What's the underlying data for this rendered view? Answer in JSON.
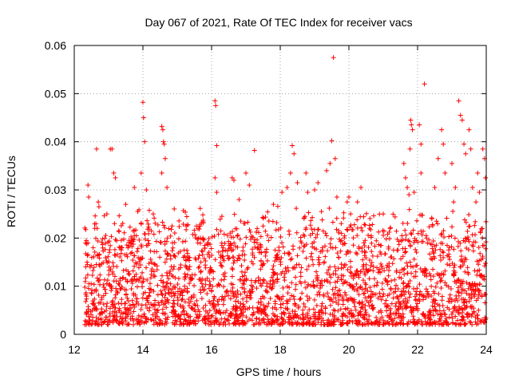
{
  "chart_data": {
    "type": "scatter",
    "title": "Day 067 of 2021, Rate Of TEC Index for receiver vacs",
    "xlabel": "GPS time / hours",
    "ylabel": "ROTI / TECUs",
    "xlim": [
      12,
      24
    ],
    "ylim": [
      0,
      0.06
    ],
    "x_ticks": [
      12,
      14,
      16,
      18,
      20,
      22,
      24
    ],
    "x_tick_labels": [
      "12",
      "14",
      "16",
      "18",
      "20",
      "22",
      "24"
    ],
    "y_ticks": [
      0,
      0.01,
      0.02,
      0.03,
      0.04,
      0.05,
      0.06
    ],
    "y_tick_labels": [
      "0",
      "0.01",
      "0.02",
      "0.03",
      "0.04",
      "0.05",
      "0.06"
    ],
    "grid": true,
    "marker": "+",
    "series_color": "#ff0000",
    "series": [
      {
        "name": "ROTI",
        "x_range": [
          12.3,
          24.0
        ],
        "typical_y_range": [
          0.002,
          0.025
        ],
        "points": [
          [
            12.35,
            0.0195
          ],
          [
            12.4,
            0.031
          ],
          [
            12.42,
            0.0285
          ],
          [
            12.55,
            0.018
          ],
          [
            12.65,
            0.0385
          ],
          [
            12.7,
            0.0275
          ],
          [
            12.72,
            0.0265
          ],
          [
            12.95,
            0.025
          ],
          [
            13.05,
            0.0385
          ],
          [
            13.1,
            0.0385
          ],
          [
            13.15,
            0.0335
          ],
          [
            13.2,
            0.0325
          ],
          [
            13.5,
            0.027
          ],
          [
            13.75,
            0.0305
          ],
          [
            13.85,
            0.0255
          ],
          [
            13.95,
            0.0335
          ],
          [
            14.0,
            0.0482
          ],
          [
            14.02,
            0.045
          ],
          [
            14.05,
            0.04
          ],
          [
            14.1,
            0.03
          ],
          [
            14.3,
            0.025
          ],
          [
            14.55,
            0.0432
          ],
          [
            14.58,
            0.0425
          ],
          [
            14.6,
            0.04
          ],
          [
            14.62,
            0.0395
          ],
          [
            14.65,
            0.0365
          ],
          [
            14.55,
            0.0335
          ],
          [
            14.7,
            0.0305
          ],
          [
            14.85,
            0.0225
          ],
          [
            15.2,
            0.0175
          ],
          [
            15.6,
            0.019
          ],
          [
            15.9,
            0.019
          ],
          [
            16.1,
            0.0485
          ],
          [
            16.12,
            0.0475
          ],
          [
            16.15,
            0.0392
          ],
          [
            16.1,
            0.0325
          ],
          [
            16.15,
            0.0295
          ],
          [
            16.3,
            0.0245
          ],
          [
            16.6,
            0.0325
          ],
          [
            16.65,
            0.032
          ],
          [
            16.8,
            0.028
          ],
          [
            17.0,
            0.0335
          ],
          [
            17.1,
            0.031
          ],
          [
            17.25,
            0.0382
          ],
          [
            17.5,
            0.0225
          ],
          [
            17.8,
            0.027
          ],
          [
            18.05,
            0.0295
          ],
          [
            18.2,
            0.0305
          ],
          [
            18.3,
            0.0335
          ],
          [
            18.35,
            0.0392
          ],
          [
            18.4,
            0.0375
          ],
          [
            18.5,
            0.0315
          ],
          [
            18.75,
            0.0335
          ],
          [
            18.8,
            0.0295
          ],
          [
            19.0,
            0.03
          ],
          [
            19.1,
            0.0315
          ],
          [
            19.2,
            0.0255
          ],
          [
            19.35,
            0.034
          ],
          [
            19.45,
            0.0355
          ],
          [
            19.5,
            0.0402
          ],
          [
            19.55,
            0.0575
          ],
          [
            19.6,
            0.0365
          ],
          [
            19.65,
            0.0285
          ],
          [
            19.7,
            0.0215
          ],
          [
            19.95,
            0.0275
          ],
          [
            20.0,
            0.0285
          ],
          [
            20.05,
            0.025
          ],
          [
            20.25,
            0.0275
          ],
          [
            20.35,
            0.0305
          ],
          [
            20.6,
            0.022
          ],
          [
            21.0,
            0.025
          ],
          [
            21.2,
            0.022
          ],
          [
            21.3,
            0.0175
          ],
          [
            21.6,
            0.0355
          ],
          [
            21.65,
            0.0325
          ],
          [
            21.7,
            0.0305
          ],
          [
            21.75,
            0.029
          ],
          [
            21.8,
            0.0445
          ],
          [
            21.82,
            0.0435
          ],
          [
            21.85,
            0.0425
          ],
          [
            21.78,
            0.0385
          ],
          [
            21.9,
            0.0295
          ],
          [
            22.05,
            0.0435
          ],
          [
            22.1,
            0.0395
          ],
          [
            22.1,
            0.0335
          ],
          [
            22.2,
            0.052
          ],
          [
            22.25,
            0.0205
          ],
          [
            22.5,
            0.0305
          ],
          [
            22.6,
            0.0365
          ],
          [
            22.7,
            0.0425
          ],
          [
            22.75,
            0.0395
          ],
          [
            22.8,
            0.0335
          ],
          [
            23.0,
            0.0355
          ],
          [
            23.05,
            0.0275
          ],
          [
            23.1,
            0.0305
          ],
          [
            23.2,
            0.0485
          ],
          [
            23.25,
            0.0455
          ],
          [
            23.3,
            0.0445
          ],
          [
            23.35,
            0.0395
          ],
          [
            23.4,
            0.0375
          ],
          [
            23.5,
            0.0425
          ],
          [
            23.55,
            0.0385
          ],
          [
            23.6,
            0.0305
          ],
          [
            23.7,
            0.0275
          ],
          [
            23.75,
            0.0335
          ],
          [
            23.8,
            0.0295
          ],
          [
            23.9,
            0.0385
          ],
          [
            23.95,
            0.0365
          ],
          [
            23.98,
            0.0325
          ],
          [
            23.85,
            0.0155
          ],
          [
            12.45,
            0.003
          ],
          [
            13.2,
            0.0055
          ],
          [
            14.1,
            0.0025
          ],
          [
            15.3,
            0.004
          ],
          [
            16.4,
            0.0045
          ],
          [
            17.2,
            0.0055
          ],
          [
            18.1,
            0.003
          ],
          [
            19.3,
            0.002
          ],
          [
            19.4,
            0.003
          ],
          [
            20.4,
            0.004
          ],
          [
            21.4,
            0.005
          ],
          [
            22.3,
            0.004
          ],
          [
            23.3,
            0.0045
          ],
          [
            23.95,
            0.0025
          ]
        ]
      }
    ]
  }
}
